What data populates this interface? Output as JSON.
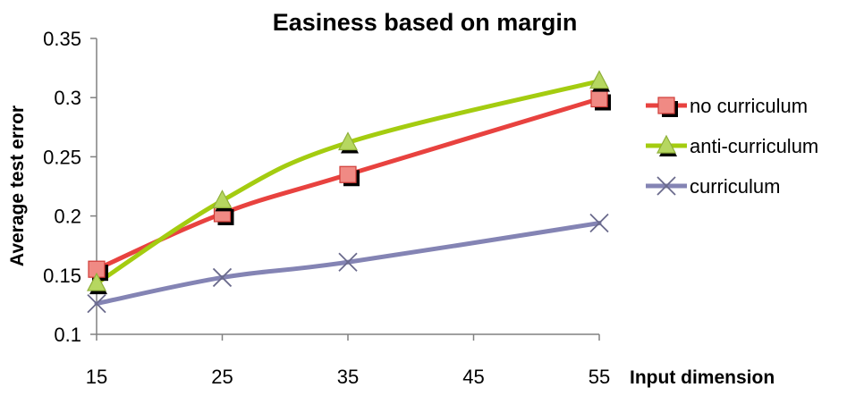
{
  "chart_data": {
    "type": "line",
    "title": "Easiness based on margin",
    "xlabel": "Input dimension",
    "ylabel": "Average test error",
    "x": [
      15,
      25,
      35,
      55
    ],
    "x_ticks": [
      "15",
      "25",
      "35",
      "45",
      "55"
    ],
    "x_tick_values": [
      15,
      25,
      35,
      45,
      55
    ],
    "xlim": [
      15,
      55
    ],
    "y_ticks": [
      "0.1",
      "0.15",
      "0.2",
      "0.25",
      "0.3",
      "0.35"
    ],
    "y_tick_values": [
      0.1,
      0.15,
      0.2,
      0.25,
      0.3,
      0.35
    ],
    "ylim": [
      0.1,
      0.35
    ],
    "grid": false,
    "legend_position": "right",
    "series": [
      {
        "name": "no curriculum",
        "values": [
          0.155,
          0.202,
          0.235,
          0.299
        ],
        "color": "#e8423f",
        "marker": "square",
        "marker_color": "#f08a84"
      },
      {
        "name": "anti-curriculum",
        "values": [
          0.143,
          0.213,
          0.262,
          0.314
        ],
        "color": "#a4cc10",
        "marker": "triangle",
        "marker_color": "#b6d760"
      },
      {
        "name": "curriculum",
        "values": [
          0.126,
          0.148,
          0.161,
          0.194
        ],
        "color": "#8484b4",
        "marker": "x",
        "marker_color": "#6a6a8c"
      }
    ]
  }
}
